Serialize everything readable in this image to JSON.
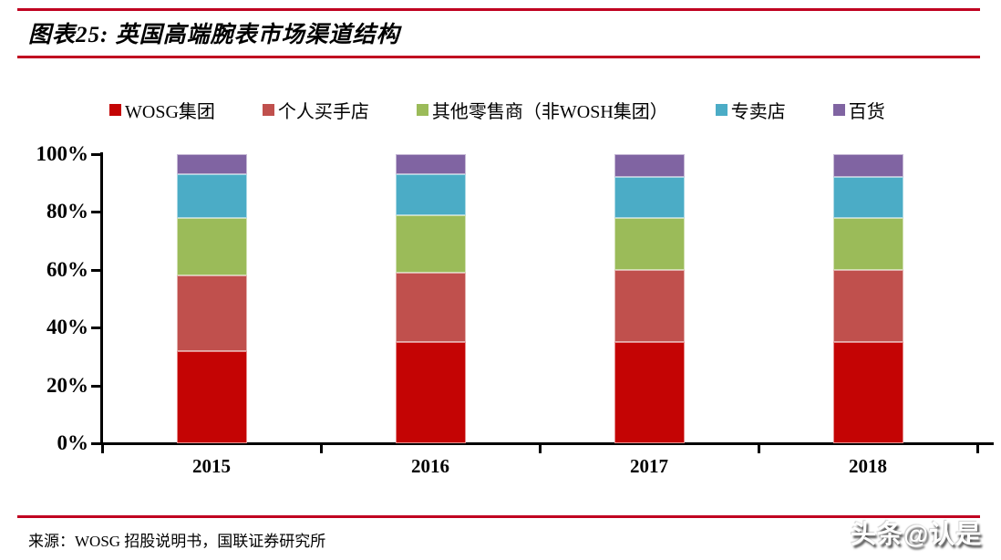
{
  "header": {
    "title": "图表25: 英国高端腕表市场渠道结构"
  },
  "chart_data": {
    "type": "bar",
    "stacked": true,
    "title": "英国高端腕表市场渠道结构",
    "categories": [
      "2015",
      "2016",
      "2017",
      "2018"
    ],
    "series": [
      {
        "name": "WOSG集团",
        "color": "#C40404",
        "values": [
          32,
          35,
          35,
          35
        ]
      },
      {
        "name": "个人买手店",
        "color": "#C0504D",
        "values": [
          26,
          24,
          25,
          25
        ]
      },
      {
        "name": "其他零售商（非WOSH集团）",
        "color": "#9BBB59",
        "values": [
          20,
          20,
          18,
          18
        ]
      },
      {
        "name": "专卖店",
        "color": "#4BACC6",
        "values": [
          15,
          14,
          14,
          14
        ]
      },
      {
        "name": "百货",
        "color": "#8064A2",
        "values": [
          7,
          7,
          8,
          8
        ]
      }
    ],
    "ylim": [
      0,
      100
    ],
    "yticks": [
      "0%",
      "20%",
      "40%",
      "60%",
      "80%",
      "100%"
    ],
    "ytick_values": [
      0,
      20,
      40,
      60,
      80,
      100
    ],
    "xlabel": "",
    "ylabel": "",
    "grid": false,
    "legend_position": "top",
    "unit": "percent"
  },
  "footer": {
    "source": "来源：WOSG 招股说明书，国联证券研究所",
    "watermark": "头条@认是"
  },
  "colors": {
    "rule": "#C00020",
    "axis": "#000000",
    "background": "#FFFFFF"
  }
}
